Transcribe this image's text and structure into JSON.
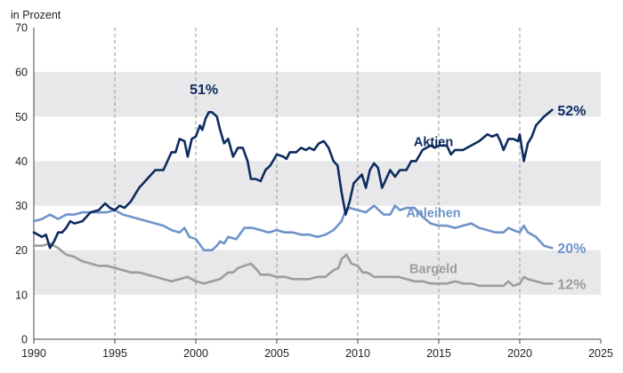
{
  "chart_data": {
    "type": "line",
    "unit_label": "in Prozent",
    "x_ticks": [
      "1990",
      "1995",
      "2000",
      "2005",
      "2010",
      "2015",
      "2020",
      "2025"
    ],
    "y_ticks": [
      "0",
      "10",
      "20",
      "30",
      "40",
      "50",
      "60",
      "70"
    ],
    "xlim": [
      1990,
      2025
    ],
    "ylim": [
      0,
      70
    ],
    "bands": true,
    "vgrid_dashed": true,
    "series": [
      {
        "name": "Aktien",
        "color": "#0d2b5e",
        "end_label": "52%",
        "points": [
          [
            1990,
            24
          ],
          [
            1990.5,
            23
          ],
          [
            1990.75,
            23.5
          ],
          [
            1991,
            20.5
          ],
          [
            1991.25,
            22
          ],
          [
            1991.5,
            24
          ],
          [
            1991.75,
            24
          ],
          [
            1992,
            25
          ],
          [
            1992.25,
            26.5
          ],
          [
            1992.5,
            26
          ],
          [
            1993,
            26.5
          ],
          [
            1993.5,
            28.5
          ],
          [
            1994,
            29
          ],
          [
            1994.4,
            30.5
          ],
          [
            1994.7,
            29.5
          ],
          [
            1995,
            29
          ],
          [
            1995.3,
            30
          ],
          [
            1995.6,
            29.5
          ],
          [
            1996,
            31
          ],
          [
            1996.5,
            34
          ],
          [
            1997,
            36
          ],
          [
            1997.5,
            38
          ],
          [
            1998,
            38
          ],
          [
            1998.5,
            42
          ],
          [
            1998.75,
            42
          ],
          [
            1999,
            45
          ],
          [
            1999.3,
            44.5
          ],
          [
            1999.5,
            41
          ],
          [
            1999.75,
            45
          ],
          [
            2000,
            45.5
          ],
          [
            2000.25,
            48
          ],
          [
            2000.4,
            47
          ],
          [
            2000.6,
            49.5
          ],
          [
            2000.8,
            51
          ],
          [
            2001,
            51
          ],
          [
            2001.3,
            50
          ],
          [
            2001.5,
            47
          ],
          [
            2001.75,
            44
          ],
          [
            2002,
            45
          ],
          [
            2002.3,
            41
          ],
          [
            2002.6,
            43
          ],
          [
            2002.9,
            43
          ],
          [
            2003.2,
            40
          ],
          [
            2003.4,
            36
          ],
          [
            2003.7,
            36
          ],
          [
            2004,
            35.5
          ],
          [
            2004.3,
            38
          ],
          [
            2004.6,
            39
          ],
          [
            2005,
            41.5
          ],
          [
            2005.4,
            41
          ],
          [
            2005.6,
            40.5
          ],
          [
            2005.8,
            42
          ],
          [
            2006.2,
            42
          ],
          [
            2006.5,
            43
          ],
          [
            2006.8,
            42.5
          ],
          [
            2007,
            43
          ],
          [
            2007.3,
            42.5
          ],
          [
            2007.6,
            44
          ],
          [
            2007.9,
            44.5
          ],
          [
            2008.2,
            43
          ],
          [
            2008.5,
            40
          ],
          [
            2008.75,
            39
          ],
          [
            2009,
            33
          ],
          [
            2009.25,
            28
          ],
          [
            2009.5,
            31
          ],
          [
            2009.75,
            35
          ],
          [
            2010,
            36
          ],
          [
            2010.25,
            37
          ],
          [
            2010.5,
            34
          ],
          [
            2010.75,
            38
          ],
          [
            2011,
            39.5
          ],
          [
            2011.25,
            38.5
          ],
          [
            2011.5,
            34
          ],
          [
            2011.75,
            36
          ],
          [
            2012,
            38
          ],
          [
            2012.3,
            36.5
          ],
          [
            2012.6,
            38
          ],
          [
            2013,
            38
          ],
          [
            2013.3,
            40
          ],
          [
            2013.6,
            40
          ],
          [
            2014,
            42.5
          ],
          [
            2014.5,
            43.5
          ],
          [
            2014.75,
            43
          ],
          [
            2015,
            43.5
          ],
          [
            2015.5,
            43.5
          ],
          [
            2015.75,
            41.5
          ],
          [
            2016,
            42.5
          ],
          [
            2016.5,
            42.5
          ],
          [
            2017,
            43.5
          ],
          [
            2017.5,
            44.5
          ],
          [
            2018,
            46
          ],
          [
            2018.3,
            45.5
          ],
          [
            2018.6,
            46
          ],
          [
            2018.8,
            44.5
          ],
          [
            2019,
            42.5
          ],
          [
            2019.3,
            45
          ],
          [
            2019.6,
            45
          ],
          [
            2019.9,
            44.5
          ],
          [
            2020,
            46
          ],
          [
            2020.25,
            40
          ],
          [
            2020.5,
            44
          ],
          [
            2020.75,
            45.5
          ],
          [
            2021,
            48
          ],
          [
            2021.5,
            50
          ],
          [
            2022,
            51.5
          ]
        ]
      },
      {
        "name": "Anleihen",
        "color": "#6f93c9",
        "end_label": "20%",
        "points": [
          [
            1990,
            26.5
          ],
          [
            1990.5,
            27
          ],
          [
            1991,
            28
          ],
          [
            1991.5,
            27
          ],
          [
            1992,
            28
          ],
          [
            1992.5,
            28
          ],
          [
            1993,
            28.5
          ],
          [
            1993.5,
            28.5
          ],
          [
            1994,
            28.5
          ],
          [
            1994.5,
            28.5
          ],
          [
            1995,
            29
          ],
          [
            1995.5,
            28
          ],
          [
            1996,
            27.5
          ],
          [
            1996.5,
            27
          ],
          [
            1997,
            26.5
          ],
          [
            1997.5,
            26
          ],
          [
            1998,
            25.5
          ],
          [
            1998.5,
            24.5
          ],
          [
            1999,
            24
          ],
          [
            1999.3,
            25
          ],
          [
            1999.6,
            23
          ],
          [
            2000,
            22.5
          ],
          [
            2000.3,
            21
          ],
          [
            2000.5,
            20
          ],
          [
            2001,
            20
          ],
          [
            2001.3,
            21
          ],
          [
            2001.5,
            22
          ],
          [
            2001.75,
            21.5
          ],
          [
            2002,
            23
          ],
          [
            2002.5,
            22.5
          ],
          [
            2003,
            25
          ],
          [
            2003.5,
            25
          ],
          [
            2004,
            24.5
          ],
          [
            2004.5,
            24
          ],
          [
            2005,
            24.5
          ],
          [
            2005.5,
            24
          ],
          [
            2006,
            24
          ],
          [
            2006.5,
            23.5
          ],
          [
            2007,
            23.5
          ],
          [
            2007.5,
            23
          ],
          [
            2008,
            23.5
          ],
          [
            2008.5,
            24.5
          ],
          [
            2009,
            26.5
          ],
          [
            2009.25,
            29
          ],
          [
            2009.5,
            29.5
          ],
          [
            2010,
            29
          ],
          [
            2010.5,
            28.5
          ],
          [
            2011,
            30
          ],
          [
            2011.3,
            29
          ],
          [
            2011.6,
            28
          ],
          [
            2012,
            28
          ],
          [
            2012.3,
            30
          ],
          [
            2012.6,
            29
          ],
          [
            2013,
            29.5
          ],
          [
            2013.5,
            29.5
          ],
          [
            2014,
            27.5
          ],
          [
            2014.5,
            26
          ],
          [
            2015,
            25.5
          ],
          [
            2015.5,
            25.5
          ],
          [
            2016,
            25
          ],
          [
            2016.5,
            25.5
          ],
          [
            2017,
            26
          ],
          [
            2017.5,
            25
          ],
          [
            2018,
            24.5
          ],
          [
            2018.5,
            24
          ],
          [
            2019,
            24
          ],
          [
            2019.3,
            25
          ],
          [
            2019.6,
            24.5
          ],
          [
            2020,
            24
          ],
          [
            2020.25,
            25.5
          ],
          [
            2020.5,
            24
          ],
          [
            2021,
            23
          ],
          [
            2021.5,
            21
          ],
          [
            2022,
            20.5
          ]
        ]
      },
      {
        "name": "Bargeld",
        "color": "#9d9d9d",
        "end_label": "12%",
        "points": [
          [
            1990,
            21
          ],
          [
            1990.5,
            21
          ],
          [
            1991,
            21.5
          ],
          [
            1991.5,
            20.5
          ],
          [
            1992,
            19
          ],
          [
            1992.5,
            18.5
          ],
          [
            1993,
            17.5
          ],
          [
            1993.5,
            17
          ],
          [
            1994,
            16.5
          ],
          [
            1994.5,
            16.5
          ],
          [
            1995,
            16
          ],
          [
            1995.5,
            15.5
          ],
          [
            1996,
            15
          ],
          [
            1996.5,
            15
          ],
          [
            1997,
            14.5
          ],
          [
            1997.5,
            14
          ],
          [
            1998,
            13.5
          ],
          [
            1998.5,
            13
          ],
          [
            1999,
            13.5
          ],
          [
            1999.5,
            14
          ],
          [
            2000,
            13
          ],
          [
            2000.5,
            12.5
          ],
          [
            2001,
            13
          ],
          [
            2001.5,
            13.5
          ],
          [
            2002,
            15
          ],
          [
            2002.3,
            15
          ],
          [
            2002.6,
            16
          ],
          [
            2003,
            16.5
          ],
          [
            2003.4,
            17
          ],
          [
            2003.8,
            15.5
          ],
          [
            2004,
            14.5
          ],
          [
            2004.5,
            14.5
          ],
          [
            2005,
            14
          ],
          [
            2005.5,
            14
          ],
          [
            2006,
            13.5
          ],
          [
            2006.5,
            13.5
          ],
          [
            2007,
            13.5
          ],
          [
            2007.5,
            14
          ],
          [
            2008,
            14
          ],
          [
            2008.5,
            15.5
          ],
          [
            2008.8,
            16
          ],
          [
            2009,
            18
          ],
          [
            2009.3,
            19
          ],
          [
            2009.6,
            17
          ],
          [
            2010,
            16.5
          ],
          [
            2010.3,
            15
          ],
          [
            2010.6,
            15
          ],
          [
            2011,
            14
          ],
          [
            2011.5,
            14
          ],
          [
            2012,
            14
          ],
          [
            2012.5,
            14
          ],
          [
            2013,
            13.5
          ],
          [
            2013.5,
            13
          ],
          [
            2014,
            13
          ],
          [
            2014.5,
            12.5
          ],
          [
            2015,
            12.5
          ],
          [
            2015.5,
            12.5
          ],
          [
            2016,
            13
          ],
          [
            2016.5,
            12.5
          ],
          [
            2017,
            12.5
          ],
          [
            2017.5,
            12
          ],
          [
            2018,
            12
          ],
          [
            2018.5,
            12
          ],
          [
            2019,
            12
          ],
          [
            2019.3,
            13
          ],
          [
            2019.6,
            12
          ],
          [
            2020,
            12.5
          ],
          [
            2020.25,
            14
          ],
          [
            2020.5,
            13.5
          ],
          [
            2021,
            13
          ],
          [
            2021.5,
            12.5
          ],
          [
            2022,
            12.5
          ]
        ]
      }
    ],
    "annotations": [
      {
        "text": "51%",
        "x": 2000.5,
        "y": 55,
        "color": "#0d2b5e"
      }
    ]
  }
}
